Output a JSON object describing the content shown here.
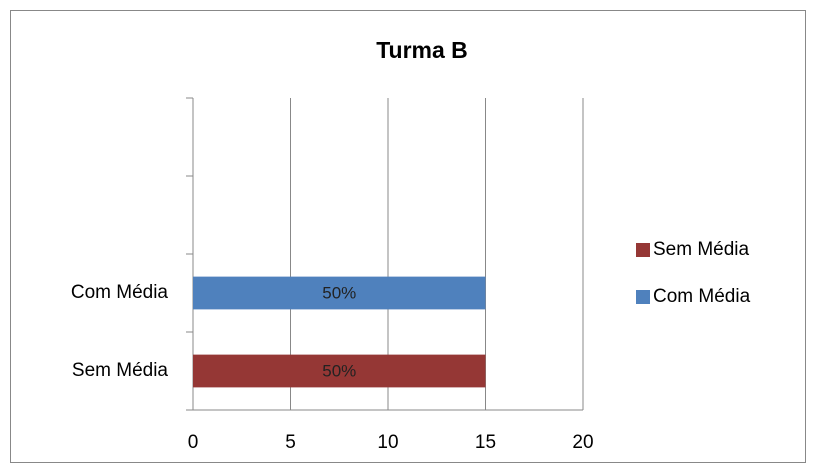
{
  "chart_data": {
    "type": "bar",
    "orientation": "horizontal",
    "title": "Turma B",
    "categories": [
      "Sem Média",
      "Com Média",
      null,
      null
    ],
    "series": [
      {
        "name": "Sem Média",
        "color": "#953735",
        "values": [
          15,
          null,
          null,
          null
        ],
        "value_labels": [
          "50%",
          null,
          null,
          null
        ]
      },
      {
        "name": "Com Média",
        "color": "#4f81bd",
        "values": [
          null,
          15,
          null,
          null
        ],
        "value_labels": [
          null,
          "50%",
          null,
          null
        ]
      }
    ],
    "xlim": [
      0,
      20
    ],
    "xticks": [
      0,
      5,
      10,
      15,
      20
    ],
    "grid": true,
    "legend": "right"
  }
}
